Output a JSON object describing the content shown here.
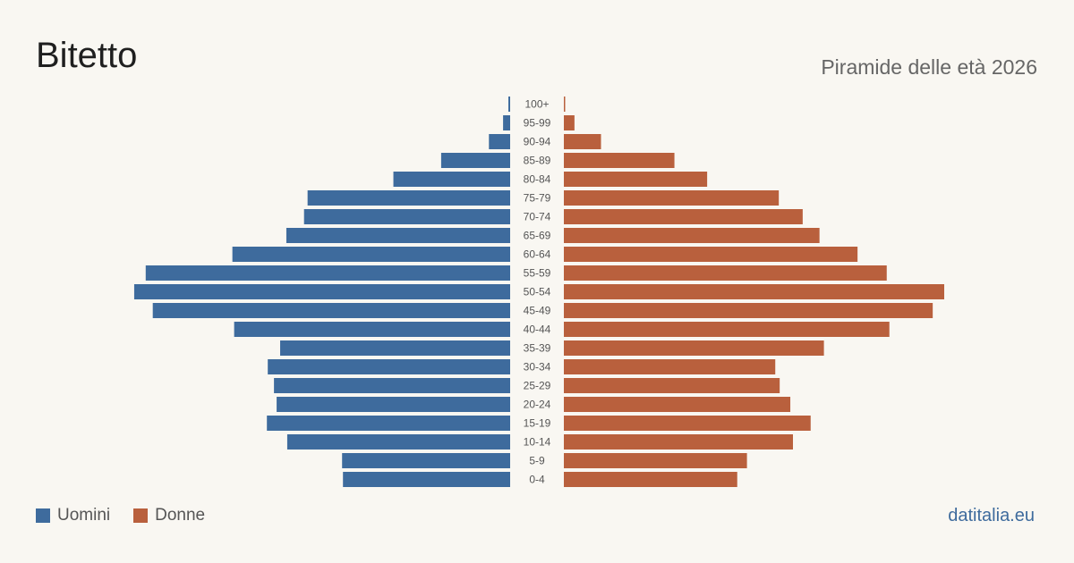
{
  "header": {
    "title": "Bitetto",
    "subtitle": "Piramide delle età 2026"
  },
  "footer": {
    "brand": "datitalia.eu"
  },
  "colors": {
    "men": "#3e6b9d",
    "women": "#b9603d",
    "background": "#f9f7f2"
  },
  "chart_data": {
    "type": "bar",
    "orientation": "horizontal-mirrored",
    "categories": [
      "100+",
      "95-99",
      "90-94",
      "85-89",
      "80-84",
      "75-79",
      "70-74",
      "65-69",
      "60-64",
      "55-59",
      "50-54",
      "45-49",
      "40-44",
      "35-39",
      "30-34",
      "25-29",
      "20-24",
      "15-19",
      "10-14",
      "5-9",
      "0-4"
    ],
    "series": [
      {
        "name": "Uomini",
        "color": "#3e6b9d",
        "values": [
          2,
          8,
          24,
          78,
          132,
          229,
          233,
          253,
          314,
          412,
          425,
          404,
          312,
          260,
          274,
          267,
          264,
          275,
          252,
          190,
          189
        ]
      },
      {
        "name": "Donne",
        "color": "#b9603d",
        "values": [
          1,
          12,
          42,
          125,
          162,
          243,
          270,
          289,
          332,
          365,
          430,
          417,
          368,
          294,
          239,
          244,
          256,
          279,
          259,
          207,
          196
        ]
      }
    ],
    "legend": "bottom-left",
    "grid": false,
    "xlim": [
      0,
      430
    ]
  }
}
